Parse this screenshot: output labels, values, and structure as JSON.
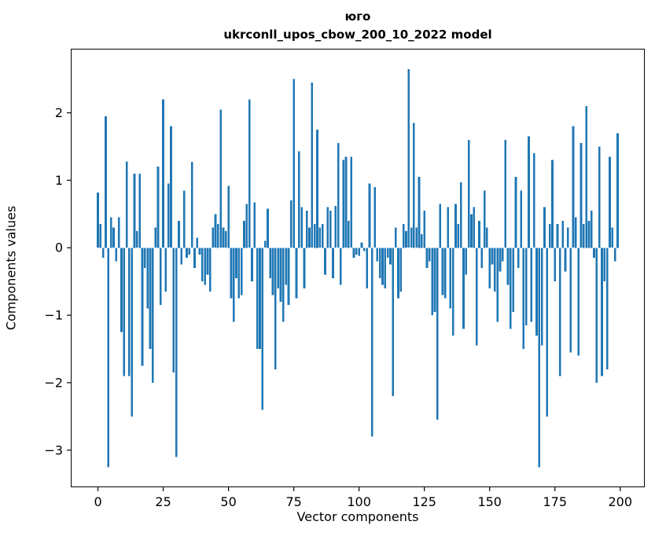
{
  "chart_data": {
    "type": "bar",
    "title": "юго",
    "subtitle": "ukrconll_upos_cbow_200_10_2022 model",
    "xlabel": "Vector components",
    "ylabel": "Components values",
    "bar_color": "#1f77b4",
    "axis_color": "#000000",
    "xlim": [
      -10.4,
      209.4
    ],
    "ylim": [
      -3.55,
      2.95
    ],
    "x_ticks": [
      0,
      25,
      50,
      75,
      100,
      125,
      150,
      175,
      200
    ],
    "y_ticks": [
      -3,
      -2,
      -1,
      0,
      1,
      2
    ],
    "bar_width": 0.8,
    "grid": false,
    "legend": "none",
    "values": [
      0.82,
      0.35,
      -0.15,
      1.95,
      -3.25,
      0.45,
      0.3,
      -0.2,
      0.45,
      -1.25,
      -1.9,
      1.28,
      -1.9,
      -2.5,
      1.1,
      0.25,
      1.1,
      -1.75,
      -0.3,
      -0.9,
      -1.5,
      -2.0,
      0.3,
      1.2,
      -0.85,
      2.2,
      -0.65,
      0.95,
      1.8,
      -1.85,
      -3.1,
      0.4,
      -0.25,
      0.85,
      -0.15,
      -0.1,
      1.27,
      -0.3,
      0.15,
      -0.1,
      -0.5,
      -0.55,
      -0.4,
      -0.65,
      0.3,
      0.5,
      0.35,
      2.05,
      0.3,
      0.25,
      0.92,
      -0.75,
      -1.1,
      -0.45,
      -0.75,
      -0.7,
      0.4,
      0.65,
      2.2,
      -0.5,
      0.67,
      -1.5,
      -1.5,
      -2.4,
      0.1,
      0.58,
      -0.45,
      -0.7,
      -1.8,
      -0.6,
      -0.8,
      -1.1,
      -0.55,
      -0.85,
      0.7,
      2.5,
      -0.75,
      1.43,
      0.6,
      -0.6,
      0.55,
      0.3,
      2.45,
      0.35,
      1.75,
      0.3,
      0.35,
      -0.4,
      0.6,
      0.55,
      -0.45,
      0.62,
      1.55,
      -0.55,
      1.3,
      1.35,
      0.4,
      1.35,
      -0.15,
      -0.1,
      -0.12,
      0.08,
      -0.05,
      -0.6,
      0.95,
      -2.8,
      0.9,
      -0.2,
      -0.45,
      -0.55,
      -0.6,
      -0.15,
      -0.25,
      -2.2,
      0.3,
      -0.75,
      -0.65,
      0.35,
      0.25,
      2.65,
      0.3,
      1.85,
      0.3,
      1.05,
      0.2,
      0.55,
      -0.3,
      -0.2,
      -1.0,
      -0.95,
      -2.55,
      0.65,
      -0.7,
      -0.75,
      0.6,
      -0.9,
      -1.3,
      0.65,
      0.35,
      0.97,
      -1.2,
      -0.4,
      1.6,
      0.5,
      0.6,
      -1.45,
      0.4,
      -0.3,
      0.85,
      0.3,
      -0.6,
      -0.25,
      -0.65,
      -1.1,
      -0.35,
      -0.2,
      1.6,
      -0.55,
      -1.2,
      -0.95,
      1.05,
      -0.3,
      0.85,
      -1.5,
      -1.15,
      1.65,
      -1.1,
      1.4,
      -1.3,
      -3.25,
      -1.45,
      0.6,
      -2.5,
      0.35,
      1.3,
      -0.5,
      0.35,
      -1.9,
      0.4,
      -0.35,
      0.3,
      -1.55,
      1.8,
      0.45,
      -1.6,
      1.55,
      0.35,
      2.1,
      0.4,
      0.55,
      -0.15,
      -2.0,
      1.5,
      -1.9,
      -0.5,
      -1.8,
      1.35,
      0.3,
      -0.2,
      1.7
    ]
  }
}
